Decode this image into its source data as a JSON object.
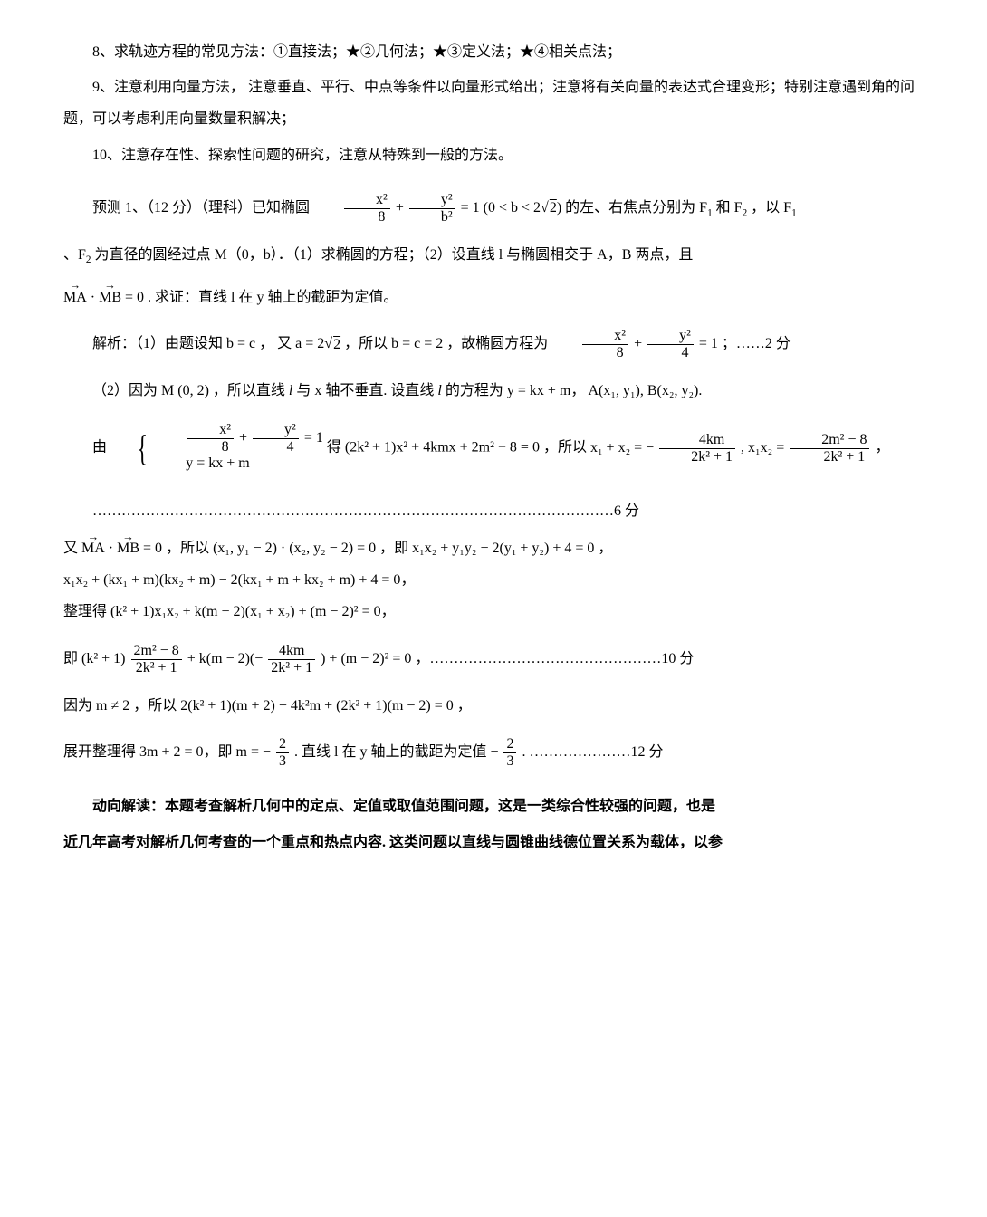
{
  "p8": "8、求轨迹方程的常见方法：①直接法；★②几何法；★③定义法；★④相关点法；",
  "p9": "9、注意利用向量方法，  注意垂直、平行、中点等条件以向量形式给出；注意将有关向量的表达式合理变形；特别注意遇到角的问题，可以考虑利用向量数量积解决；",
  "p10": "10、注意存在性、探索性问题的研究，注意从特殊到一般的方法。",
  "q1_lead": "预测 1、（12 分）（理科）已知椭圆 ",
  "q1_frac1_num": "x²",
  "q1_frac1_den": "8",
  "q1_plus": " + ",
  "q1_frac2_num": "y²",
  "q1_frac2_den": "b²",
  "q1_eq": " = 1 ",
  "q1_cond": "(0 < b < 2",
  "q1_sqrt2": "2",
  "q1_cond_close": ")",
  "q1_tail_a": " 的左、右焦点分别为 F",
  "q1_tail_b": " 和 F",
  "q1_tail_c": " ，以 F",
  "sub1": "1",
  "sub2": "2",
  "q1_line2_a": "、F",
  "q1_line2_b": " 为直径的圆经过点 M（0，b）．（1）求椭圆的方程；（2）设直线 l 与椭圆相交于 A，B 两点，且",
  "q1_vec1": "MA",
  "q1_dot": " · ",
  "q1_vec2": "MB",
  "q1_vec_eq": " = 0",
  "q1_line3": ". 求证：直线 l 在 y 轴上的截距为定值。",
  "sol_lead": "解析：（1）由题设知 ",
  "sol_bc": "b = c",
  "sol_comma": "，",
  "sol_you1": "又 ",
  "sol_a": "a = 2",
  "sol_sqrt2b": "2",
  "sol_suoyi": "，所以 ",
  "sol_bc2": "b = c = 2",
  "sol_gu": "，故椭圆方程为 ",
  "sol_fr1n": "x²",
  "sol_fr1d": "8",
  "sol_fr2n": "y²",
  "sol_fr2d": "4",
  "sol_eq1": " = 1",
  "sol_score1": "；……2 分",
  "sol2_lead": "（2）因为 ",
  "sol2_M": "M (0, 2)",
  "sol2_a": "，所以直线 ",
  "sol2_l1": "l",
  "sol2_b": " 与 x 轴不垂直. 设直线 ",
  "sol2_l2": "l",
  "sol2_c": " 的方程为 ",
  "sol2_line": "y = kx + m",
  "sol2_d": "，",
  "sol2_AB": "A(x₁, y₁), B(x₂, y₂)",
  "sol2_e": ".",
  "you_lbl": "由 ",
  "sys_r1_f1n": "x²",
  "sys_r1_f1d": "8",
  "sys_r1_f2n": "y²",
  "sys_r1_f2d": "4",
  "sys_r1_tail": " = 1",
  "sys_r2": "y = kx + m",
  "de_lbl": " 得 ",
  "quad": "(2k² + 1)x² + 4kmx + 2m² − 8 = 0",
  "suoyi2": "，所以 ",
  "sum_x": "x₁ + x₂ = − ",
  "fr4km_n": "4km",
  "fr4km_d": "2k² + 1",
  "comma2": ", ",
  "prod_x": "x₁x₂ = ",
  "fr2m8_n": "2m² − 8",
  "fr2m8_d": "2k² + 1",
  "comma3": "，",
  "dots6": "………………………………………………………………………………………………6 分",
  "you3": "又 ",
  "vecMA": "MA",
  "vecMB": "MB",
  "veceq0": " = 0",
  "suoyi3": "，所以 ",
  "expand1": "(x₁, y₁ − 2) · (x₂, y₂ − 2) = 0",
  "ji1": "，即 ",
  "expand2": "x₁x₂ + y₁y₂ − 2(y₁ + y₂) + 4 = 0",
  "comma4": "，",
  "line_xx": "x₁x₂ + (kx₁ + m)(kx₂ + m) − 2(kx₁ + m + kx₂ + m) + 4 = 0",
  "zhengli": "整理得 ",
  "zhengli_eq": "(k² + 1)x₁x₂ + k(m − 2)(x₁ + x₂) + (m − 2)² = 0",
  "ji2": "即 ",
  "big_a": "(k² + 1)",
  "big_f1n": "2m² − 8",
  "big_f1d": "2k² + 1",
  "big_plus": " + k(m − 2)(− ",
  "big_f2n": "4km",
  "big_f2d": "2k² + 1",
  "big_close": ") + (m − 2)² = 0",
  "dots10": "，…………………………………………10 分",
  "yinwei": "因为 ",
  "mneq2": "m ≠ 2",
  "suoyi4": "，所以 ",
  "factor": "2(k² + 1)(m + 2) − 4k²m + (2k² + 1)(m − 2) = 0",
  "comma5": "，",
  "final_a": "展开整理得 3m + 2 = 0，即 m = − ",
  "final_f1n": "2",
  "final_f1d": "3",
  "final_b": ". 直线 l 在 y 轴上的截距为定值 − ",
  "final_f2n": "2",
  "final_f2d": "3",
  "final_score": ". …………………12 分",
  "comment1": "动向解读：本题考查解析几何中的定点、定值或取值范围问题，这是一类综合性较强的问题，也是",
  "comment2": "近几年高考对解析几何考查的一个重点和热点内容. 这类问题以直线与圆锥曲线德位置关系为载体，以参"
}
